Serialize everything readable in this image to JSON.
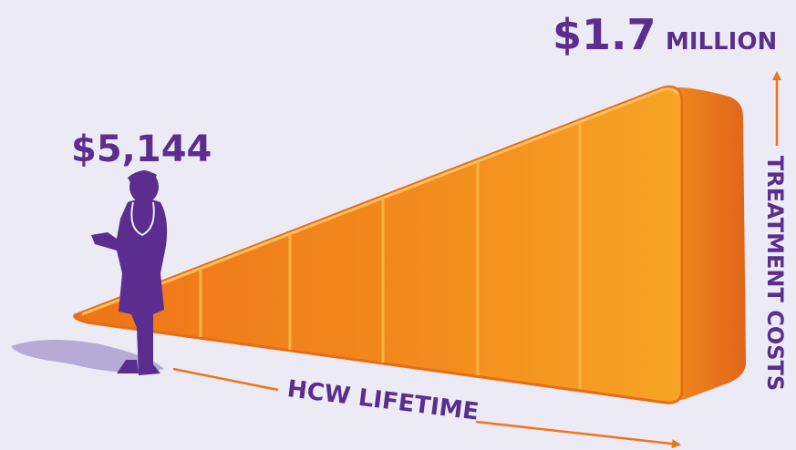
{
  "labels": {
    "start_cost": "$5,144",
    "end_cost_amount": "$1.7",
    "end_cost_unit": "MILLION",
    "vertical_axis": "TREATMENT COSTS",
    "horizontal_axis": "HCW LIFETIME"
  }
}
